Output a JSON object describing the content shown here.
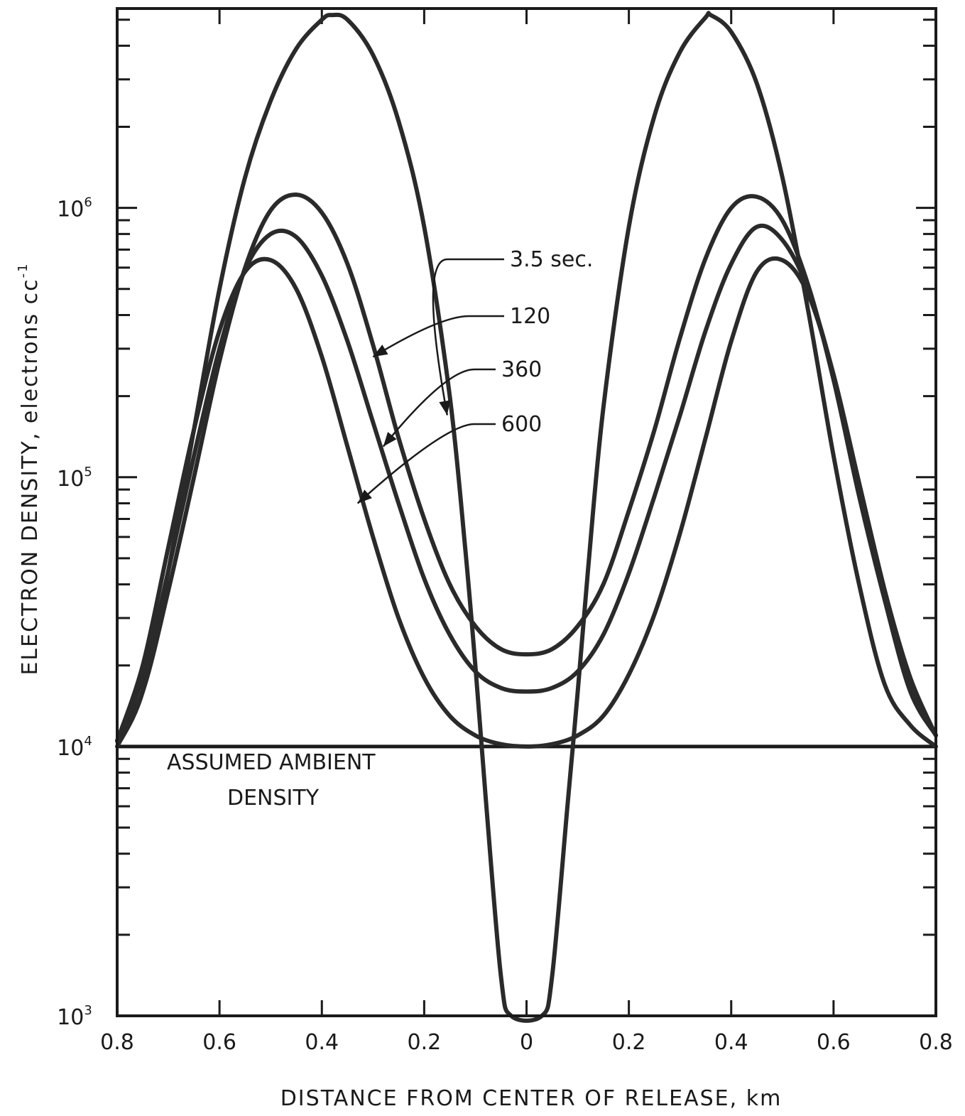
{
  "chart_data": {
    "type": "line",
    "title": "",
    "xlabel": "DISTANCE FROM CENTER OF RELEASE, km",
    "ylabel": "ELECTRON DENSITY, electrons cc",
    "ylabel_exponent": "-1",
    "y_scale": "log",
    "xlim": [
      -0.8,
      0.8
    ],
    "ylim": [
      1000,
      5500000
    ],
    "grid": false,
    "x_ticks": [
      -0.8,
      -0.6,
      -0.4,
      -0.2,
      0,
      0.2,
      0.4,
      0.6,
      0.8
    ],
    "x_tick_labels": [
      "0.8",
      "0.6",
      "0.4",
      "0.2",
      "0",
      "0.2",
      "0.4",
      "0.6",
      "0.8"
    ],
    "y_major_ticks": [
      {
        "value": 1000,
        "base": "10",
        "exp": "3"
      },
      {
        "value": 10000,
        "base": "10",
        "exp": "4"
      },
      {
        "value": 100000,
        "base": "10",
        "exp": "5"
      },
      {
        "value": 1000000,
        "base": "10",
        "exp": "6"
      }
    ],
    "ambient_line": {
      "value": 10000,
      "label_line1": "ASSUMED AMBIENT",
      "label_line2": "DENSITY"
    },
    "series": [
      {
        "name": "3.5 sec.",
        "x": [
          -0.8,
          -0.75,
          -0.7,
          -0.65,
          -0.6,
          -0.55,
          -0.5,
          -0.45,
          -0.4,
          -0.38,
          -0.35,
          -0.3,
          -0.25,
          -0.2,
          -0.15,
          -0.12,
          -0.1,
          -0.08,
          -0.05,
          -0.03,
          0.03,
          0.05,
          0.08,
          0.1,
          0.12,
          0.15,
          0.2,
          0.25,
          0.3,
          0.35,
          0.36,
          0.4,
          0.45,
          0.5,
          0.55,
          0.6,
          0.65,
          0.7,
          0.75,
          0.8
        ],
        "y": [
          10000,
          16000,
          45000,
          150000,
          500000,
          1300000,
          2500000,
          3900000,
          5000000,
          5200000,
          5000000,
          3700000,
          2100000,
          850000,
          200000,
          55000,
          20000,
          6500,
          1400,
          1000,
          1000,
          1400,
          6000,
          16000,
          45000,
          180000,
          850000,
          2200000,
          3800000,
          5100000,
          5200000,
          4500000,
          2900000,
          1300000,
          420000,
          120000,
          40000,
          17000,
          12000,
          10000
        ]
      },
      {
        "name": "120",
        "x": [
          -0.8,
          -0.75,
          -0.7,
          -0.65,
          -0.6,
          -0.55,
          -0.5,
          -0.45,
          -0.4,
          -0.35,
          -0.3,
          -0.25,
          -0.2,
          -0.15,
          -0.1,
          -0.05,
          0,
          0.05,
          0.1,
          0.15,
          0.2,
          0.25,
          0.3,
          0.35,
          0.4,
          0.45,
          0.5,
          0.55,
          0.6,
          0.65,
          0.7,
          0.75,
          0.8
        ],
        "y": [
          10500,
          16000,
          38000,
          100000,
          270000,
          600000,
          980000,
          1120000,
          960000,
          620000,
          310000,
          140000,
          70000,
          40000,
          28000,
          23000,
          22000,
          23000,
          28000,
          40000,
          75000,
          150000,
          330000,
          650000,
          1000000,
          1100000,
          900000,
          520000,
          230000,
          85000,
          35000,
          16000,
          11000
        ]
      },
      {
        "name": "360",
        "x": [
          -0.8,
          -0.75,
          -0.7,
          -0.65,
          -0.6,
          -0.55,
          -0.5,
          -0.45,
          -0.4,
          -0.35,
          -0.3,
          -0.25,
          -0.2,
          -0.15,
          -0.1,
          -0.05,
          0,
          0.05,
          0.1,
          0.15,
          0.2,
          0.25,
          0.3,
          0.35,
          0.4,
          0.45,
          0.5,
          0.55,
          0.6,
          0.65,
          0.7,
          0.75,
          0.8
        ],
        "y": [
          10500,
          18000,
          45000,
          120000,
          300000,
          590000,
          800000,
          780000,
          560000,
          320000,
          160000,
          80000,
          42000,
          26000,
          19000,
          16500,
          16000,
          16500,
          19000,
          26000,
          44000,
          85000,
          170000,
          350000,
          620000,
          850000,
          760000,
          500000,
          240000,
          95000,
          38000,
          17000,
          11000
        ]
      },
      {
        "name": "600",
        "x": [
          -0.8,
          -0.75,
          -0.7,
          -0.65,
          -0.6,
          -0.55,
          -0.5,
          -0.45,
          -0.4,
          -0.35,
          -0.3,
          -0.25,
          -0.2,
          -0.15,
          -0.1,
          -0.05,
          0,
          0.05,
          0.1,
          0.15,
          0.2,
          0.25,
          0.3,
          0.35,
          0.4,
          0.45,
          0.5,
          0.55,
          0.6,
          0.65,
          0.7,
          0.75,
          0.8
        ],
        "y": [
          10500,
          20000,
          55000,
          150000,
          350000,
          580000,
          640000,
          500000,
          280000,
          130000,
          60000,
          30000,
          18000,
          13000,
          11000,
          10200,
          10000,
          10200,
          11000,
          13000,
          18500,
          31000,
          62000,
          140000,
          320000,
          580000,
          640000,
          480000,
          240000,
          95000,
          38000,
          18000,
          11000
        ]
      }
    ]
  }
}
